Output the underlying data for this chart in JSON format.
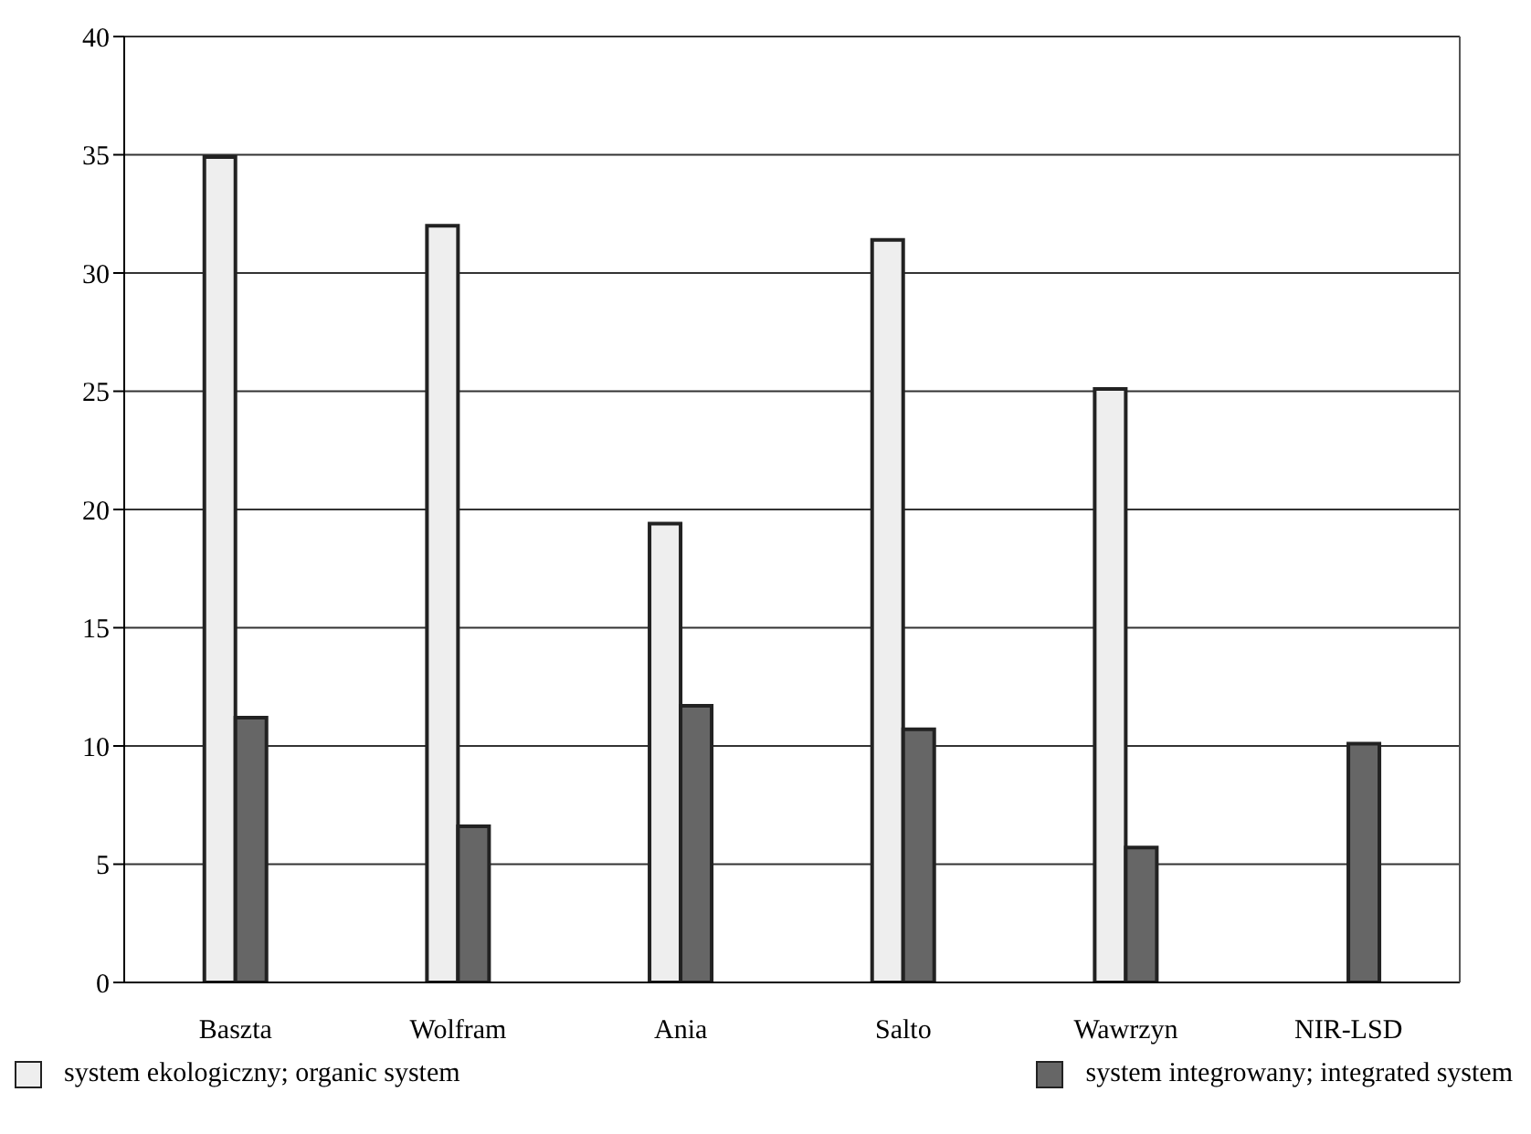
{
  "chart_data": {
    "type": "bar",
    "categories": [
      "Baszta",
      "Wolfram",
      "Ania",
      "Salto",
      "Wawrzyn",
      "NIR-LSD"
    ],
    "series": [
      {
        "name": "system ekologiczny; organic system",
        "color": "#eeeeee",
        "values": [
          34.9,
          32.0,
          19.4,
          31.4,
          25.1,
          null
        ]
      },
      {
        "name": "system integrowany; integrated system",
        "color": "#666666",
        "values": [
          11.2,
          6.6,
          11.7,
          10.7,
          5.7,
          10.1
        ]
      }
    ],
    "ylim": [
      0,
      40
    ],
    "yticks": [
      0,
      5,
      10,
      15,
      20,
      25,
      30,
      35,
      40
    ],
    "grid": "y",
    "legend": "bottom"
  }
}
